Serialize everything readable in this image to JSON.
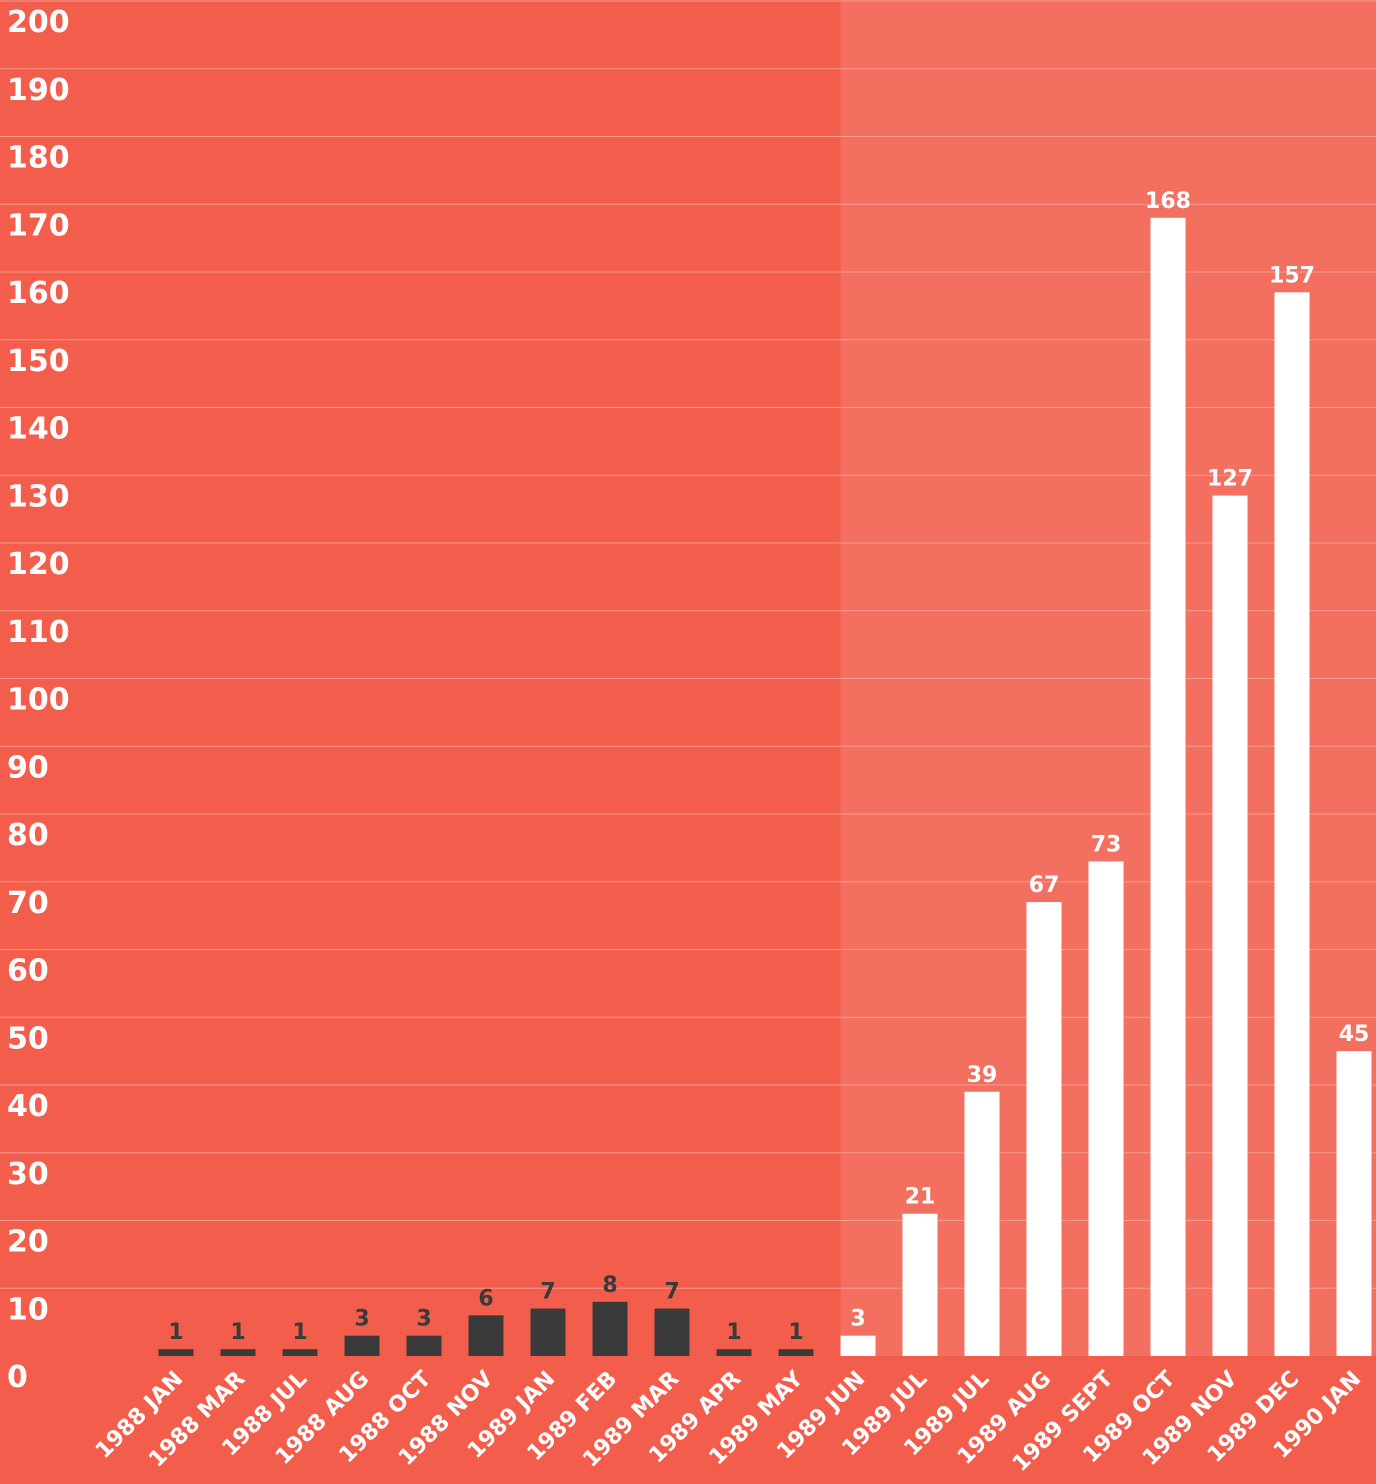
{
  "colors": {
    "background": "#f25d4c",
    "highlight_background": "#f37061",
    "gridline": "#f79a8f",
    "dark_bar": "#3a3a3a",
    "light_bar": "#ffffff"
  },
  "chart_data": {
    "type": "bar",
    "title": "",
    "xlabel": "",
    "ylabel": "",
    "ylim": [
      0,
      200
    ],
    "y_ticks": [
      0,
      10,
      20,
      30,
      40,
      50,
      60,
      70,
      80,
      90,
      100,
      110,
      120,
      130,
      140,
      150,
      160,
      170,
      180,
      190,
      200
    ],
    "grid": true,
    "legend": "none",
    "categories": [
      "1988 JAN",
      "1988 MAR",
      "1988 JUL",
      "1988 AUG",
      "1988 OCT",
      "1988 NOV",
      "1989 JAN",
      "1989 FEB",
      "1989 MAR",
      "1989 APR",
      "1989 MAY",
      "1989 JUN",
      "1989 JUL",
      "1989 JUL",
      "1989 AUG",
      "1989 SEPT",
      "1989 OCT",
      "1989 NOV",
      "1989 DEC",
      "1990 JAN"
    ],
    "values": [
      1,
      1,
      1,
      3,
      3,
      6,
      7,
      8,
      7,
      1,
      1,
      3,
      21,
      39,
      67,
      73,
      168,
      127,
      157,
      45
    ],
    "bar_colors": [
      "dark",
      "dark",
      "dark",
      "dark",
      "dark",
      "dark",
      "dark",
      "dark",
      "dark",
      "dark",
      "dark",
      "light",
      "light",
      "light",
      "light",
      "light",
      "light",
      "light",
      "light",
      "light"
    ],
    "highlighted_region_start_index": 11
  }
}
